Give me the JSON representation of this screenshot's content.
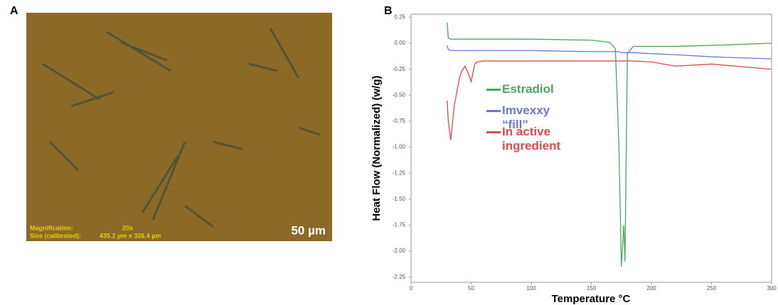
{
  "micrograph": {
    "panel_label": "A",
    "magnification_label": "Magnification:",
    "magnification": "20x",
    "size_label": "Size (calibrated):",
    "size": "435.2 µm x 326.4 µm",
    "scale_bar": "50 µm"
  },
  "chart_data": {
    "type": "line",
    "panel_label": "B",
    "x_label": "Temperature °C",
    "y_label": "Heat Flow (Normalized) (w/g)",
    "xlim": [
      0,
      300
    ],
    "xticks": [
      0,
      50,
      100,
      150,
      200,
      250,
      300
    ],
    "ylim": [
      -2.3,
      0.28
    ],
    "yticks": [
      0.25,
      {
        "value": 0,
        "label": "0.00"
      },
      -0.25,
      {
        "value": -0.5,
        "label": "-0.50"
      },
      -0.75,
      {
        "value": -1,
        "label": "-1.00"
      },
      -1.25,
      {
        "value": -1.5,
        "label": "-1.50"
      },
      -1.75,
      {
        "value": -2,
        "label": "-2.00"
      },
      -2.25
    ],
    "grid": false,
    "x": [
      30,
      31,
      33,
      36,
      40,
      42,
      45,
      48,
      50,
      53,
      55,
      60,
      100,
      150,
      165,
      170,
      173,
      175,
      177,
      178,
      180,
      185,
      200,
      220,
      250,
      300
    ],
    "series": [
      {
        "name": "Estradiol",
        "color": "#4aa860",
        "values": [
          0.2,
          0.05,
          0.04,
          0.04,
          0.04,
          0.04,
          0.04,
          0.04,
          0.04,
          0.04,
          0.04,
          0.04,
          0.04,
          0.03,
          0.01,
          -0.05,
          -1.0,
          -2.15,
          -1.75,
          -2.1,
          -0.1,
          -0.03,
          -0.03,
          -0.03,
          -0.02,
          0.0
        ]
      },
      {
        "name": "Imvexxy “fill”",
        "color": "#6a78d8",
        "values": [
          -0.02,
          -0.06,
          -0.07,
          -0.07,
          -0.07,
          -0.07,
          -0.07,
          -0.07,
          -0.07,
          -0.07,
          -0.07,
          -0.07,
          -0.07,
          -0.08,
          -0.08,
          -0.08,
          -0.08,
          -0.09,
          -0.09,
          -0.09,
          -0.09,
          -0.09,
          -0.1,
          -0.11,
          -0.13,
          -0.15
        ]
      },
      {
        "name": "In active ingredient",
        "color": "#e0484c",
        "values": [
          -0.55,
          -0.75,
          -0.93,
          -0.6,
          -0.35,
          -0.27,
          -0.22,
          -0.3,
          -0.37,
          -0.2,
          -0.18,
          -0.17,
          -0.17,
          -0.17,
          -0.17,
          -0.17,
          -0.17,
          -0.17,
          -0.17,
          -0.17,
          -0.17,
          -0.17,
          -0.18,
          -0.22,
          -0.2,
          -0.25
        ]
      }
    ]
  }
}
